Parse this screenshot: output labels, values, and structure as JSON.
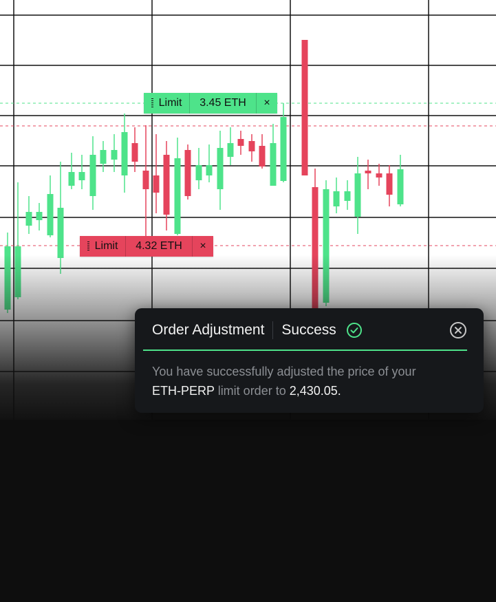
{
  "orders": {
    "green": {
      "type": "Limit",
      "amount": "3.45 ETH",
      "close": "×"
    },
    "red": {
      "type": "Limit",
      "amount": "4.32 ETH",
      "close": "×"
    }
  },
  "toast": {
    "title": "Order Adjustment",
    "status": "Success",
    "body_prefix": "You have successfully adjusted the price of your",
    "symbol": "ETH-PERP",
    "body_middle": " limit order to ",
    "price": "2,430.05",
    "body_suffix": "."
  },
  "colors": {
    "up": "#4ee38a",
    "down": "#e5445c",
    "background": "#0e0e0e",
    "toast_background": "#16181b",
    "accent": "#4ee38a"
  }
}
